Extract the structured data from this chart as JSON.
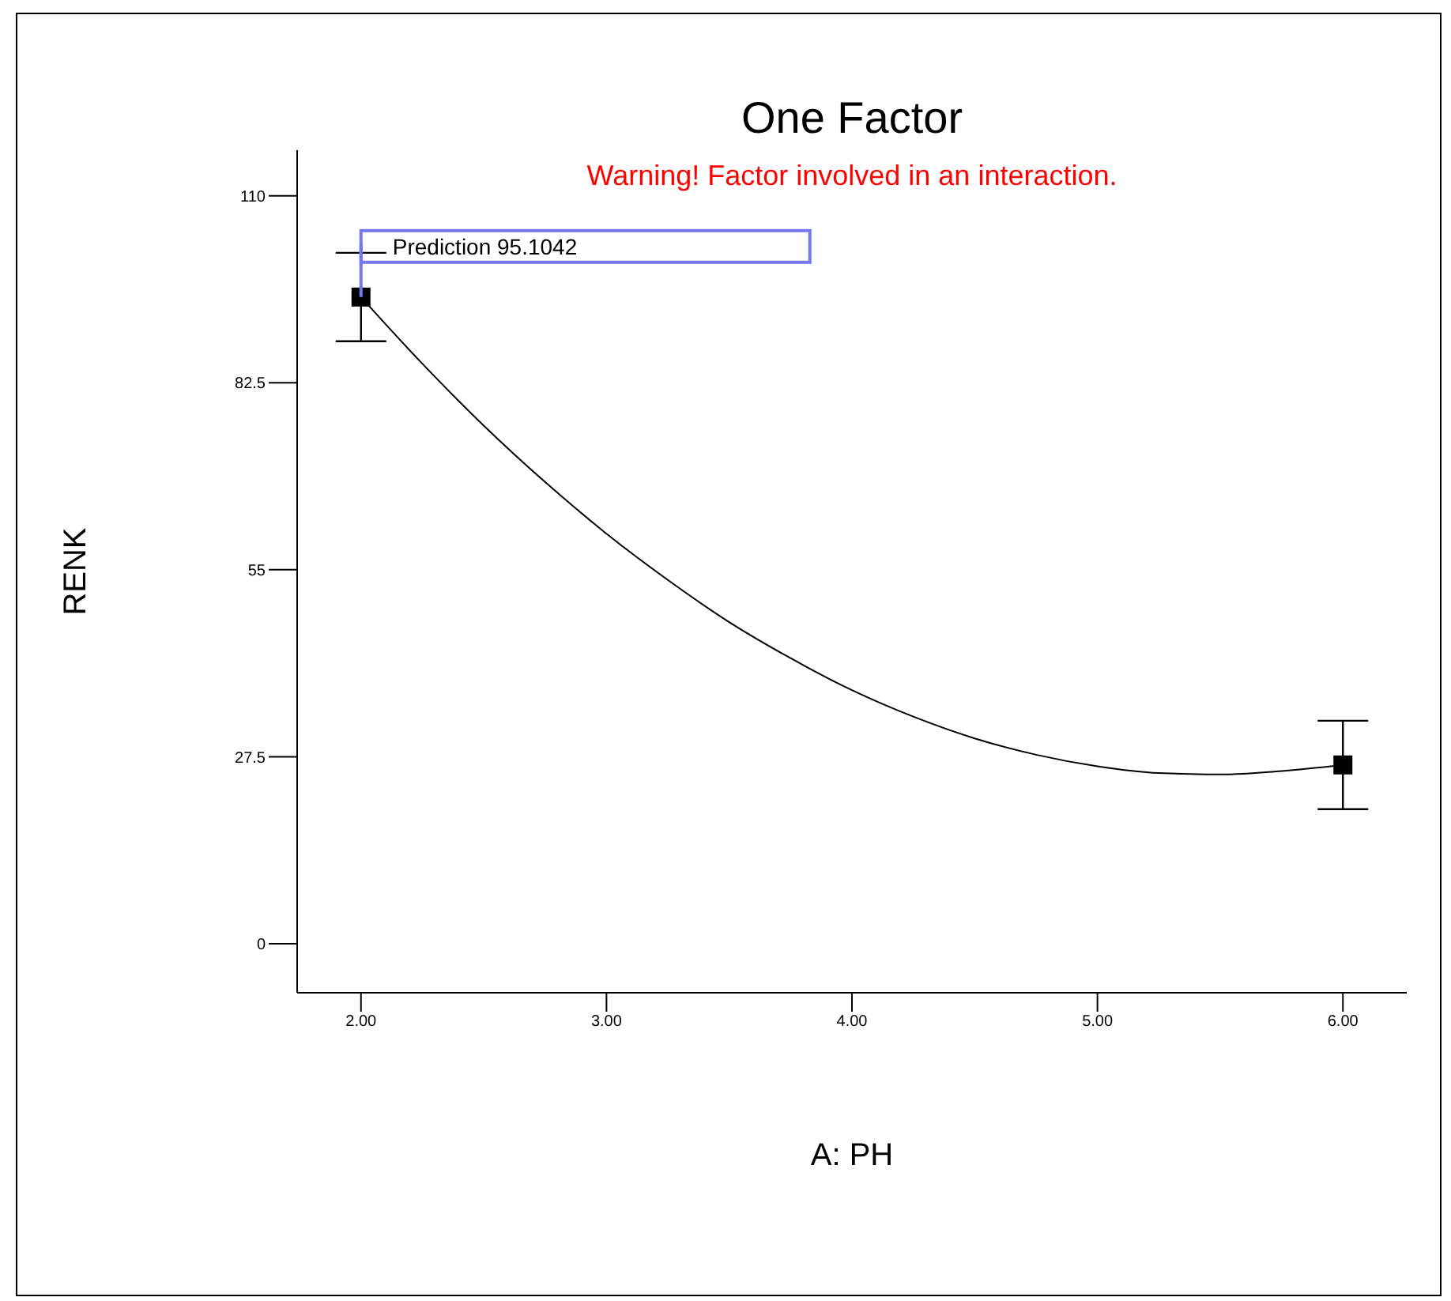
{
  "chart_data": {
    "type": "line",
    "title": "One Factor",
    "xlabel": "A: PH",
    "ylabel": "RENK",
    "annotations": [
      "Warning! Factor involved in an interaction.",
      {
        "text": "Prediction 95.1042",
        "x": 2,
        "y": 95.1042
      }
    ],
    "xlim": [
      1.74,
      6.26
    ],
    "ylim": [
      -7.2,
      116.7
    ],
    "xticks": [
      {
        "value": 2,
        "label": "2.00"
      },
      {
        "value": 3,
        "label": "3.00"
      },
      {
        "value": 4,
        "label": "4.00"
      },
      {
        "value": 5,
        "label": "5.00"
      },
      {
        "value": 6,
        "label": "6.00"
      }
    ],
    "yticks": [
      0,
      27.5,
      55,
      82.5,
      110
    ],
    "grid": false,
    "series": [
      {
        "color": "#000000",
        "marker": "none",
        "x": [
          2,
          2.25,
          2.5,
          2.75,
          3,
          3.25,
          3.5,
          3.75,
          4,
          4.25,
          4.5,
          4.75,
          5,
          5.25,
          5.5,
          5.75,
          6
        ],
        "values": [
          95.1,
          85.3,
          76.2,
          67.9,
          60.3,
          53.5,
          47.3,
          42.0,
          37.3,
          33.4,
          30.2,
          27.8,
          26.1,
          25.1,
          24.9,
          25.4,
          26.3
        ]
      },
      {
        "type": "scatter",
        "color": "#000000",
        "marker": "square",
        "x": [
          2,
          6
        ],
        "values": [
          95.1,
          26.3
        ],
        "errors": [
          6.5,
          6.5
        ]
      }
    ]
  }
}
